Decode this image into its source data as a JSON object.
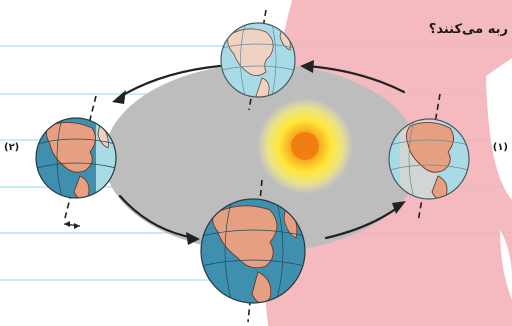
{
  "question": "ربه می‌کنند؟",
  "positions": {
    "right": "(۱)",
    "left": "(۲)"
  },
  "colors": {
    "ocean": "#3f8fae",
    "ocean_light": "#a9dbe6",
    "land": "#e6a081",
    "land_light": "#f0d2c2",
    "orbit_plane": "#bdbdbd",
    "sun_core": "#f28a16",
    "sun_glow": "#ffe83a",
    "pink_band": "#f3aeb4",
    "ruled_line": "#b5e6ef"
  },
  "icons": {
    "sun": "sun-icon",
    "arrow": "curved-arrow-icon",
    "globe": "earth-globe-icon"
  }
}
